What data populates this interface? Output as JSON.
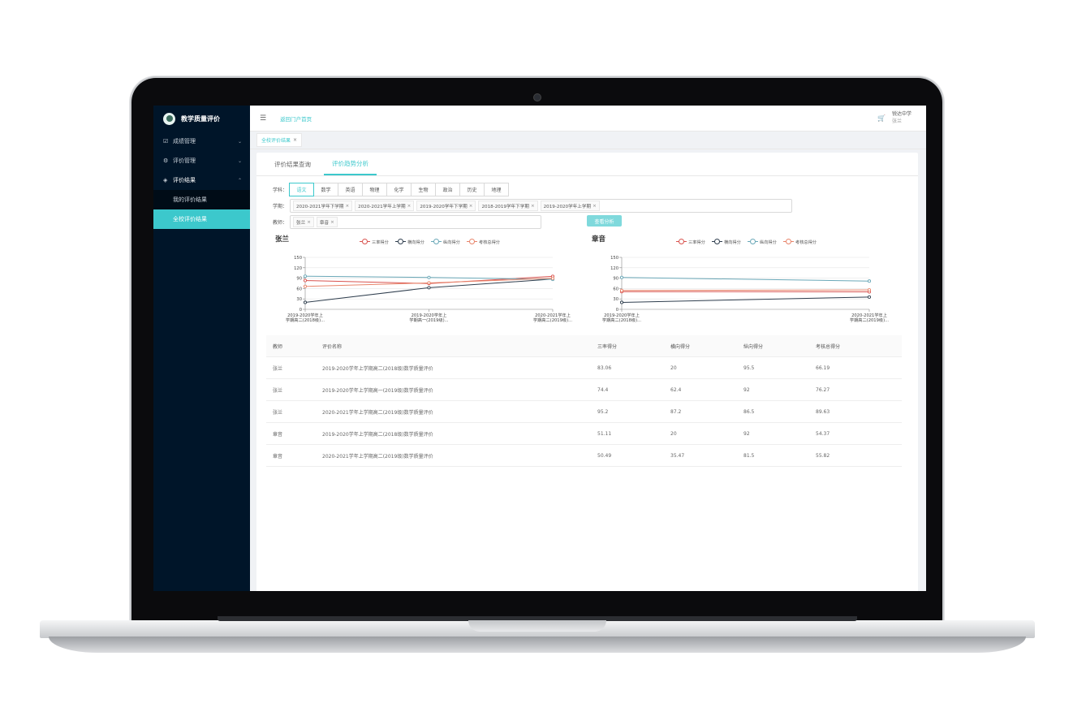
{
  "app": {
    "title": "教学质量评价"
  },
  "sidebar": {
    "items": [
      {
        "label": "成绩管理",
        "icon": "checkbox-icon"
      },
      {
        "label": "评价管理",
        "icon": "gear-icon"
      },
      {
        "label": "评价结果",
        "icon": "tag-icon"
      }
    ],
    "sub_items": [
      {
        "label": "我的评价结果"
      },
      {
        "label": "全校评价结果"
      }
    ]
  },
  "topbar": {
    "back_link": "返回门户首页",
    "school": "锐达中学",
    "user": "张兰"
  },
  "tag": {
    "label": "全校评价结果",
    "close": "×"
  },
  "tabs": [
    {
      "label": "评价结果查询"
    },
    {
      "label": "评价趋势分析"
    }
  ],
  "filters": {
    "subject_label": "学科：",
    "subjects": [
      "语文",
      "数学",
      "英语",
      "物理",
      "化学",
      "生物",
      "政治",
      "历史",
      "地理"
    ],
    "active_subject": "语文",
    "term_label": "学期：",
    "terms": [
      "2020-2021学年下学期",
      "2020-2021学年上学期",
      "2019-2020学年下学期",
      "2018-2019学年下学期",
      "2019-2020学年上学期"
    ],
    "teacher_label": "教师：",
    "teachers": [
      "张兰",
      "章音"
    ],
    "chip_close": "×",
    "analyze_button": "查看分析"
  },
  "legend": [
    "三率得分",
    "横向得分",
    "纵向得分",
    "考核总得分"
  ],
  "chart_data": [
    {
      "type": "line",
      "title": "张兰",
      "categories": [
        "2019-2020学年上学期高二(2018级)...",
        "2019-2020学年上学期高一(2019级)...",
        "2020-2021学年上学期高二(2019级)..."
      ],
      "category_lines": [
        [
          "2019-2020学年上",
          "学期高二(2018级)..."
        ],
        [
          "2019-2020学年上",
          "学期高一(2019级)..."
        ],
        [
          "2020-2021学年上",
          "学期高二(2019级)..."
        ]
      ],
      "ylim": [
        0,
        150
      ],
      "yticks": [
        0,
        30,
        60,
        90,
        120,
        150
      ],
      "series": [
        {
          "name": "三率得分",
          "values": [
            83.06,
            74.4,
            95.2
          ],
          "color": "#d9534f"
        },
        {
          "name": "横向得分",
          "values": [
            20,
            62.4,
            87.2
          ],
          "color": "#2f3e4e"
        },
        {
          "name": "纵向得分",
          "values": [
            95.5,
            92,
            86.5
          ],
          "color": "#6aa8b8"
        },
        {
          "name": "考核总得分",
          "values": [
            66.19,
            76.27,
            89.63
          ],
          "color": "#e8856b"
        }
      ]
    },
    {
      "type": "line",
      "title": "章音",
      "categories": [
        "2019-2020学年上学期高二(2018级)...",
        "2020-2021学年上学期高二(2019级)..."
      ],
      "category_lines": [
        [
          "2019-2020学年上",
          "学期高二(2018级)..."
        ],
        [
          "2020-2021学年上",
          "学期高二(2019级)..."
        ]
      ],
      "ylim": [
        0,
        150
      ],
      "yticks": [
        0,
        30,
        60,
        90,
        120,
        150
      ],
      "series": [
        {
          "name": "三率得分",
          "values": [
            51.11,
            50.49
          ],
          "color": "#d9534f"
        },
        {
          "name": "横向得分",
          "values": [
            20,
            35.47
          ],
          "color": "#2f3e4e"
        },
        {
          "name": "纵向得分",
          "values": [
            92,
            81.5
          ],
          "color": "#6aa8b8"
        },
        {
          "name": "考核总得分",
          "values": [
            54.37,
            55.82
          ],
          "color": "#e8856b"
        }
      ]
    }
  ],
  "table": {
    "headers": [
      "教师",
      "评价名称",
      "三率得分",
      "横向得分",
      "纵向得分",
      "考核总得分"
    ],
    "rows": [
      [
        "张兰",
        "2019-2020学年上学期高二(2018级)数学质量评价",
        "83.06",
        "20",
        "95.5",
        "66.19"
      ],
      [
        "张兰",
        "2019-2020学年上学期高一(2019级)数学质量评价",
        "74.4",
        "62.4",
        "92",
        "76.27"
      ],
      [
        "张兰",
        "2020-2021学年上学期高二(2019级)数学质量评价",
        "95.2",
        "87.2",
        "86.5",
        "89.63"
      ],
      [
        "章音",
        "2019-2020学年上学期高二(2018级)数学质量评价",
        "51.11",
        "20",
        "92",
        "54.37"
      ],
      [
        "章音",
        "2020-2021学年上学期高二(2019级)数学质量评价",
        "50.49",
        "35.47",
        "81.5",
        "55.82"
      ]
    ]
  }
}
